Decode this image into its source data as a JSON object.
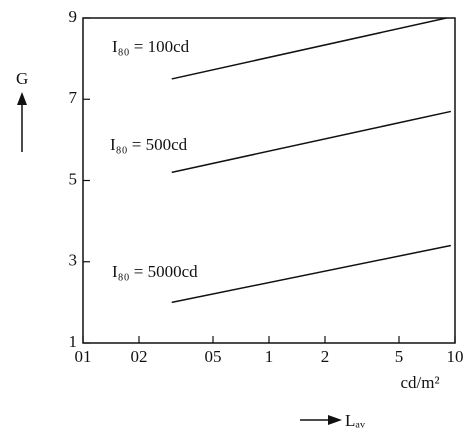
{
  "chart_data": {
    "type": "line",
    "xscale": "log",
    "xlim": [
      0.1,
      10
    ],
    "ylim": [
      1,
      9
    ],
    "xticks": [
      {
        "value": 0.1,
        "label": "01"
      },
      {
        "value": 0.2,
        "label": "02"
      },
      {
        "value": 0.5,
        "label": "05"
      },
      1,
      2,
      5,
      10
    ],
    "yticks": [
      1,
      3,
      5,
      7,
      9
    ],
    "ylabel": "G",
    "xlabel": "Lₐᵥ",
    "xunit": "cd/m²",
    "series": [
      {
        "name": "I₈₀ = 100cd",
        "color": "#111111",
        "x": [
          0.3,
          9
        ],
        "values": [
          7.5,
          9.0
        ]
      },
      {
        "name": "I₈₀ = 500cd",
        "color": "#111111",
        "x": [
          0.3,
          9.5
        ],
        "values": [
          5.2,
          6.7
        ]
      },
      {
        "name": "I₈₀ = 5000cd",
        "color": "#111111",
        "x": [
          0.3,
          9.5
        ],
        "values": [
          2.0,
          3.4
        ]
      }
    ]
  }
}
